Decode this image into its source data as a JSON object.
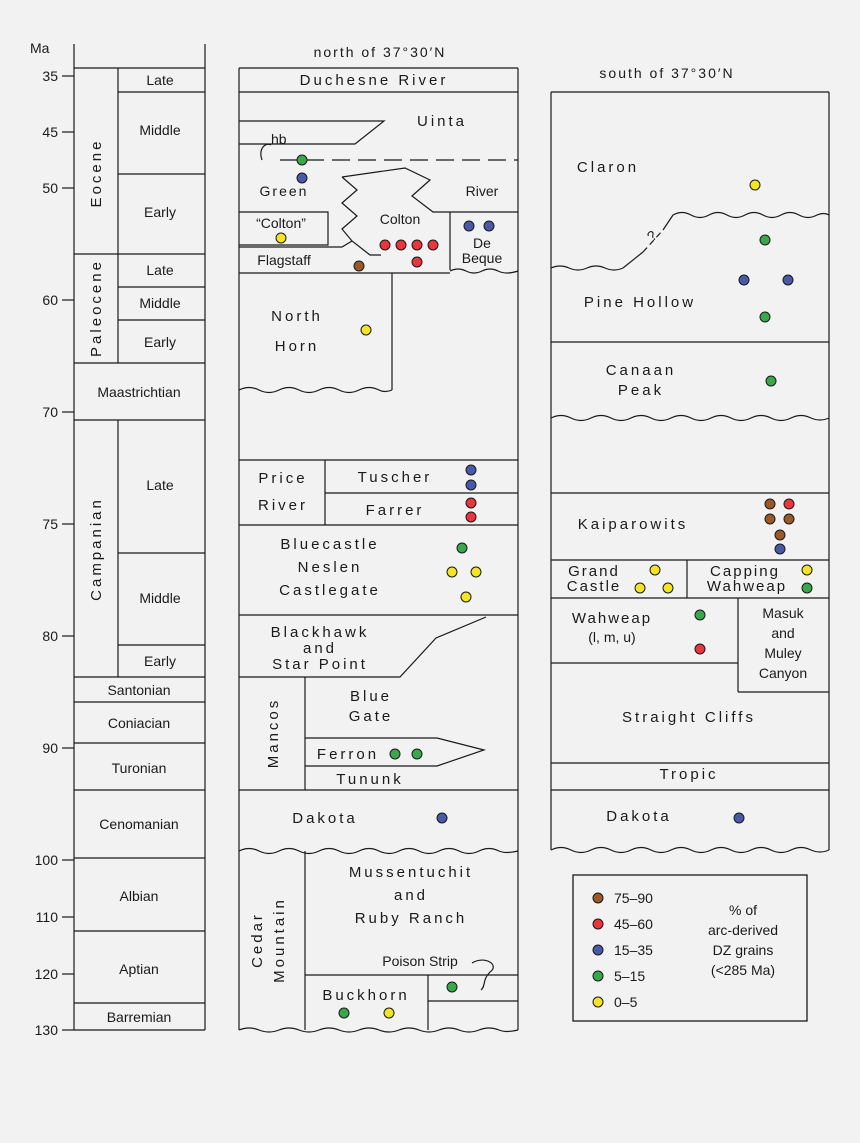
{
  "colors": {
    "c75_90": "#9a5a28",
    "c45_60": "#e8363c",
    "c15_35": "#4a58a8",
    "c5_15": "#3aa84a",
    "c0_5": "#f4e426"
  },
  "scale": {
    "unit": "Ma",
    "ticks": [
      {
        "v": 35,
        "label": "35"
      },
      {
        "v": 45,
        "label": "45"
      },
      {
        "v": 50,
        "label": "50"
      },
      {
        "v": 60,
        "label": "60"
      },
      {
        "v": 70,
        "label": "70"
      },
      {
        "v": 75,
        "label": "75"
      },
      {
        "v": 80,
        "label": "80"
      },
      {
        "v": 90,
        "label": "90"
      },
      {
        "v": 100,
        "label": "100"
      },
      {
        "v": 110,
        "label": "110"
      },
      {
        "v": 120,
        "label": "120"
      },
      {
        "v": 130,
        "label": "130"
      }
    ]
  },
  "epochs": [
    {
      "label": "Eocene"
    },
    {
      "label": "Paleocene"
    },
    {
      "label": "Campanian"
    }
  ],
  "stages": [
    "Late",
    "Middle",
    "Early",
    "Late",
    "Middle",
    "Early",
    "Maastrichtian",
    "Late",
    "Middle",
    "Early",
    "Santonian",
    "Coniacian",
    "Turonian",
    "Cenomanian",
    "Albian",
    "Aptian",
    "Barremian"
  ],
  "north": {
    "header": "north of 37°30′N",
    "units": {
      "duchesne": "Duchesne River",
      "uinta": "Uinta",
      "hb": "hb",
      "green": "Green",
      "river": "River",
      "colton_q": "“Colton”",
      "colton": "Colton",
      "de": "De",
      "beque": "Beque",
      "flagstaff": "Flagstaff",
      "north": "North",
      "horn": "Horn",
      "price": "Price",
      "river2": "River",
      "tuscher": "Tuscher",
      "farrer": "Farrer",
      "bluecastle": "Bluecastle",
      "neslen": "Neslen",
      "castlegate": "Castlegate",
      "blackhawk": "Blackhawk",
      "and": "and",
      "starpoint": "Star Point",
      "mancos": "Mancos",
      "blue": "Blue",
      "gate": "Gate",
      "ferron": "Ferron",
      "tununk": "Tununk",
      "dakota": "Dakota",
      "cedar": "Cedar",
      "mountain": "Mountain",
      "mussentuchit": "Mussentuchit",
      "and2": "and",
      "ruby": "Ruby Ranch",
      "poison": "Poison Strip",
      "buckhorn": "Buckhorn"
    }
  },
  "south": {
    "header": "south of 37°30′N",
    "units": {
      "claron": "Claron",
      "qmark": "?",
      "pinehollow": "Pine Hollow",
      "canaan": "Canaan",
      "peak": "Peak",
      "kaiparowits": "Kaiparowits",
      "grand": "Grand",
      "castle": "Castle",
      "capping": "Capping",
      "wahweap_c": "Wahweap",
      "wahweap": "Wahweap",
      "wahweap_sub": "(l, m, u)",
      "masuk": "Masuk",
      "and": "and",
      "muley": "Muley",
      "canyon": "Canyon",
      "straight": "Straight Cliffs",
      "tropic": "Tropic",
      "dakota": "Dakota"
    }
  },
  "legend": {
    "entries": [
      {
        "label": "75–90",
        "color": "#9a5a28"
      },
      {
        "label": "45–60",
        "color": "#e8363c"
      },
      {
        "label": "15–35",
        "color": "#4a58a8"
      },
      {
        "label": "5–15",
        "color": "#3aa84a"
      },
      {
        "label": "0–5",
        "color": "#f4e426"
      }
    ],
    "title_lines": [
      "% of",
      "arc-derived",
      "DZ grains",
      "(<285 Ma)"
    ]
  }
}
